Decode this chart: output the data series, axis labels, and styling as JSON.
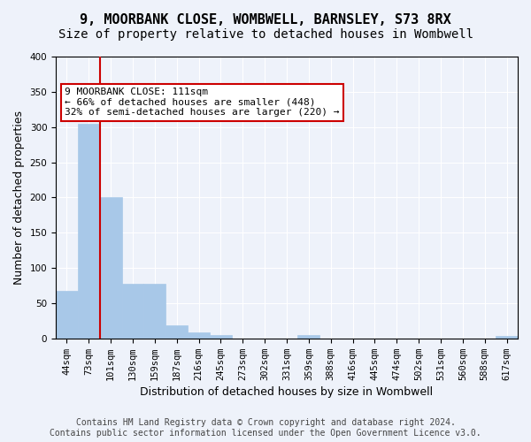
{
  "title": "9, MOORBANK CLOSE, WOMBWELL, BARNSLEY, S73 8RX",
  "subtitle": "Size of property relative to detached houses in Wombwell",
  "xlabel": "Distribution of detached houses by size in Wombwell",
  "ylabel": "Number of detached properties",
  "bin_labels": [
    "44sqm",
    "73sqm",
    "101sqm",
    "130sqm",
    "159sqm",
    "187sqm",
    "216sqm",
    "245sqm",
    "273sqm",
    "302sqm",
    "331sqm",
    "359sqm",
    "388sqm",
    "416sqm",
    "445sqm",
    "474sqm",
    "502sqm",
    "531sqm",
    "560sqm",
    "588sqm",
    "617sqm"
  ],
  "bar_values": [
    68,
    305,
    200,
    78,
    78,
    19,
    8,
    5,
    0,
    0,
    0,
    5,
    0,
    0,
    0,
    0,
    0,
    0,
    0,
    0,
    3
  ],
  "bar_color": "#a8c8e8",
  "bar_edge_color": "#a8c8e8",
  "vline_x_index": 2,
  "vline_color": "#cc0000",
  "annotation_text": "9 MOORBANK CLOSE: 111sqm\n← 66% of detached houses are smaller (448)\n32% of semi-detached houses are larger (220) →",
  "annotation_box_color": "#ffffff",
  "annotation_box_edge": "#cc0000",
  "ylim": [
    0,
    400
  ],
  "yticks": [
    0,
    50,
    100,
    150,
    200,
    250,
    300,
    350,
    400
  ],
  "footnote": "Contains HM Land Registry data © Crown copyright and database right 2024.\nContains public sector information licensed under the Open Government Licence v3.0.",
  "bg_color": "#eef2fa",
  "plot_bg_color": "#eef2fa",
  "grid_color": "#ffffff",
  "title_fontsize": 11,
  "subtitle_fontsize": 10,
  "xlabel_fontsize": 9,
  "ylabel_fontsize": 9,
  "tick_fontsize": 7.5,
  "footnote_fontsize": 7
}
